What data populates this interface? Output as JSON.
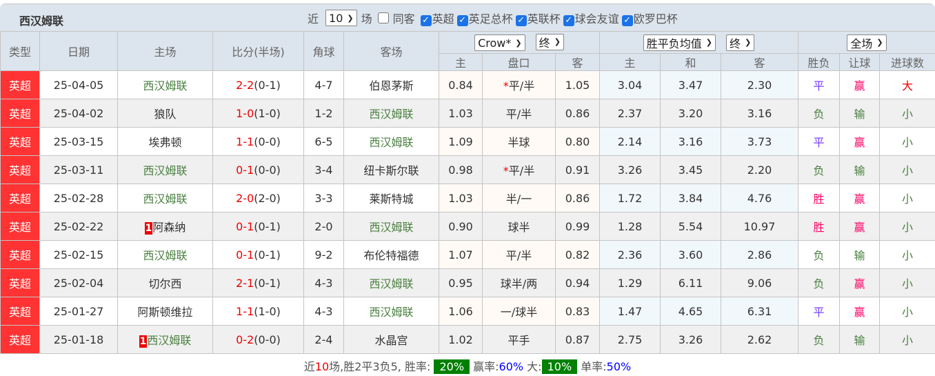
{
  "title": "西汉姆联",
  "filters": {
    "recent_label": "近",
    "recent_value": "10",
    "unit": "场",
    "same_host": "同客",
    "competitions": [
      "英超",
      "英足总杯",
      "英联杯",
      "球会友谊",
      "欧罗巴杯"
    ]
  },
  "headers": {
    "type": "类型",
    "date": "日期",
    "home": "主场",
    "score": "比分(半场)",
    "corner": "角球",
    "away": "客场",
    "handicap_company": "Crow*",
    "handicap_stage": "终",
    "odds_type": "胜平负均值",
    "odds_stage": "终",
    "period": "全场",
    "h_home": "主",
    "h_line": "盘口",
    "h_away": "客",
    "o_home": "主",
    "o_draw": "和",
    "o_away": "客",
    "result": "胜负",
    "ah": "让球",
    "goals": "进球数"
  },
  "rows": [
    {
      "league": "英超",
      "date": "25-04-05",
      "home": "西汉姆联",
      "home_rank": "",
      "ft": "2-2",
      "ht": "(0-1)",
      "corner": "4-7",
      "away": "伯恩茅斯",
      "hh": "0.84",
      "line_star": "*",
      "line": "平/半",
      "ha": "1.05",
      "oh": "3.04",
      "od": "3.47",
      "oa": "2.30",
      "res": "平",
      "ah": "赢",
      "goals": "大"
    },
    {
      "league": "英超",
      "date": "25-04-02",
      "home": "狼队",
      "home_rank": "",
      "ft": "1-0",
      "ht": "(1-0)",
      "corner": "1-2",
      "away": "西汉姆联",
      "hh": "1.03",
      "line_star": "",
      "line": "平/半",
      "ha": "0.86",
      "oh": "2.37",
      "od": "3.20",
      "oa": "3.16",
      "res": "负",
      "ah": "输",
      "goals": "小"
    },
    {
      "league": "英超",
      "date": "25-03-15",
      "home": "埃弗顿",
      "home_rank": "",
      "ft": "1-1",
      "ht": "(0-0)",
      "corner": "6-5",
      "away": "西汉姆联",
      "hh": "1.09",
      "line_star": "",
      "line": "半球",
      "ha": "0.80",
      "oh": "2.14",
      "od": "3.16",
      "oa": "3.73",
      "res": "平",
      "ah": "赢",
      "goals": "小"
    },
    {
      "league": "英超",
      "date": "25-03-11",
      "home": "西汉姆联",
      "home_rank": "",
      "ft": "0-1",
      "ht": "(0-0)",
      "corner": "3-4",
      "away": "纽卡斯尔联",
      "hh": "0.98",
      "line_star": "*",
      "line": "平/半",
      "ha": "0.91",
      "oh": "3.26",
      "od": "3.45",
      "oa": "2.20",
      "res": "负",
      "ah": "输",
      "goals": "小"
    },
    {
      "league": "英超",
      "date": "25-02-28",
      "home": "西汉姆联",
      "home_rank": "",
      "ft": "2-0",
      "ht": "(2-0)",
      "corner": "3-3",
      "away": "莱斯特城",
      "hh": "1.03",
      "line_star": "",
      "line": "半/一",
      "ha": "0.86",
      "oh": "1.72",
      "od": "3.84",
      "oa": "4.76",
      "res": "胜",
      "ah": "赢",
      "goals": "小"
    },
    {
      "league": "英超",
      "date": "25-02-22",
      "home": "阿森纳",
      "home_rank": "1",
      "ft": "0-1",
      "ht": "(0-1)",
      "corner": "2-0",
      "away": "西汉姆联",
      "hh": "0.90",
      "line_star": "",
      "line": "球半",
      "ha": "0.99",
      "oh": "1.28",
      "od": "5.54",
      "oa": "10.97",
      "res": "胜",
      "ah": "赢",
      "goals": "小"
    },
    {
      "league": "英超",
      "date": "25-02-15",
      "home": "西汉姆联",
      "home_rank": "",
      "ft": "0-1",
      "ht": "(0-1)",
      "corner": "9-2",
      "away": "布伦特福德",
      "hh": "1.07",
      "line_star": "",
      "line": "平/半",
      "ha": "0.82",
      "oh": "2.36",
      "od": "3.60",
      "oa": "2.86",
      "res": "负",
      "ah": "输",
      "goals": "小"
    },
    {
      "league": "英超",
      "date": "25-02-04",
      "home": "切尔西",
      "home_rank": "",
      "ft": "2-1",
      "ht": "(0-1)",
      "corner": "4-3",
      "away": "西汉姆联",
      "hh": "0.95",
      "line_star": "",
      "line": "球半/两",
      "ha": "0.94",
      "oh": "1.29",
      "od": "6.11",
      "oa": "9.06",
      "res": "负",
      "ah": "赢",
      "goals": "小"
    },
    {
      "league": "英超",
      "date": "25-01-27",
      "home": "阿斯顿维拉",
      "home_rank": "",
      "ft": "1-1",
      "ht": "(1-0)",
      "corner": "4-3",
      "away": "西汉姆联",
      "hh": "1.06",
      "line_star": "",
      "line": "一/球半",
      "ha": "0.83",
      "oh": "1.47",
      "od": "4.65",
      "oa": "6.31",
      "res": "平",
      "ah": "赢",
      "goals": "小"
    },
    {
      "league": "英超",
      "date": "25-01-18",
      "home": "西汉姆联",
      "home_rank": "1",
      "ft": "0-2",
      "ht": "(0-0)",
      "corner": "2-4",
      "away": "水晶宫",
      "hh": "1.02",
      "line_star": "",
      "line": "平手",
      "ha": "0.87",
      "oh": "2.75",
      "od": "3.26",
      "oa": "2.62",
      "res": "负",
      "ah": "输",
      "goals": "小"
    }
  ],
  "summary": {
    "p1": "近",
    "n": "10",
    "p2": "场,胜2平3负5, 胜率:",
    "win_rate": "20%",
    "p3": "赢率:",
    "ah_rate": "60%",
    "p4": "大:",
    "over_rate": "10%",
    "p5": "单率:",
    "odd_rate": "50%"
  },
  "colors": {
    "league_bg": "#ff3333",
    "team_highlight": "#4a8040",
    "header_bg": "#dce4ed",
    "rate_box": "#008000"
  }
}
